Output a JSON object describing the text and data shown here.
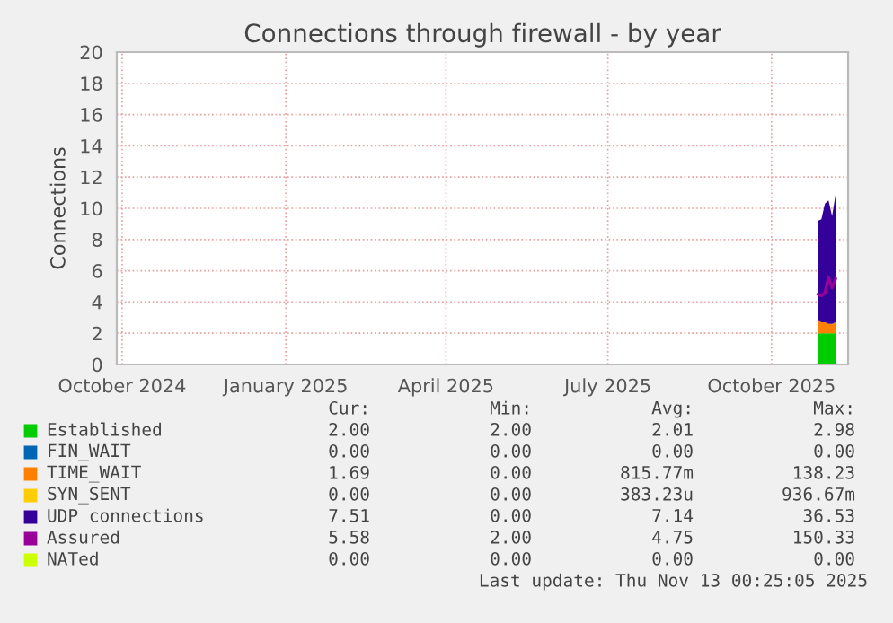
{
  "chart_data": {
    "type": "area",
    "stacked": true,
    "title": "Connections through firewall - by year",
    "ylabel": "Connections",
    "x": [
      "2025-10-27",
      "2025-10-29",
      "2025-10-31",
      "2025-11-02",
      "2025-11-04",
      "2025-11-06"
    ],
    "series": [
      {
        "name": "Established",
        "color": "#00cc00",
        "values": [
          2,
          2,
          2,
          2,
          2,
          2
        ]
      },
      {
        "name": "FIN_WAIT",
        "color": "#0066b3",
        "values": [
          null,
          null,
          null,
          null,
          null,
          null
        ]
      },
      {
        "name": "TIME_WAIT",
        "color": "#ff8000",
        "values": [
          0.8,
          0.7,
          0.7,
          0.6,
          0.6,
          0.7
        ]
      },
      {
        "name": "SYN_SENT",
        "color": "#ffcc00",
        "values": [
          null,
          null,
          null,
          null,
          null,
          null
        ]
      },
      {
        "name": "UDP connections",
        "color": "#330099",
        "values": [
          6.4,
          6.6,
          7.6,
          7.9,
          6.9,
          8.2
        ]
      },
      {
        "name": "Assured",
        "type": "line",
        "color": "#990099",
        "values": [
          4.5,
          4.4,
          4.6,
          5.6,
          4.9,
          5.5
        ]
      },
      {
        "name": "NATed",
        "color": "#ccff00",
        "values": [
          null,
          null,
          null,
          null,
          null,
          null
        ]
      }
    ],
    "xlim": [
      "2024-09-28",
      "2025-11-13"
    ],
    "xticks": [
      {
        "value": "2024-10-01",
        "label": "October 2024"
      },
      {
        "value": "2025-01-01",
        "label": "January 2025"
      },
      {
        "value": "2025-04-01",
        "label": "April 2025"
      },
      {
        "value": "2025-07-01",
        "label": "July 2025"
      },
      {
        "value": "2025-10-01",
        "label": "October 2025"
      }
    ],
    "ylim": [
      0,
      20
    ],
    "yticks": [
      0,
      2,
      4,
      6,
      8,
      10,
      12,
      14,
      16,
      18,
      20
    ],
    "grid": true,
    "legend": "bottom",
    "annotations": [
      "Cur:",
      "Min:",
      "Avg:",
      "Max:",
      "2.00",
      "2.00",
      "2.01",
      "2.98",
      "0.00",
      "0.00",
      "0.00",
      "0.00",
      "1.69",
      "0.00",
      "815.77m",
      "138.23",
      "0.00",
      "0.00",
      "383.23u",
      "936.67m",
      "7.51",
      "0.00",
      "7.14",
      "36.53",
      "5.58",
      "2.00",
      "4.75",
      "150.33",
      "0.00",
      "0.00",
      "0.00",
      "0.00",
      "Last update: Thu Nov 13 00:25:05 2025"
    ]
  }
}
